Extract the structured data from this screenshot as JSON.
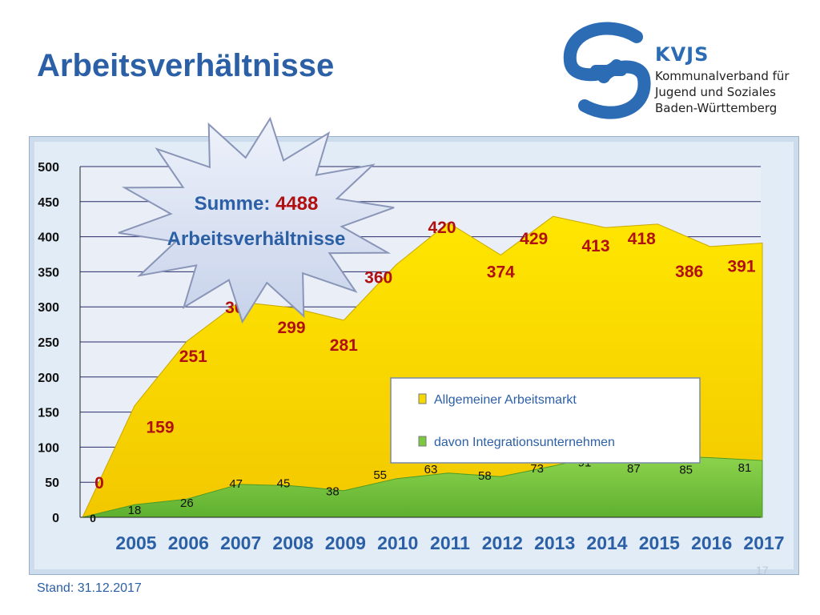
{
  "title": "Arbeitsverhältnisse",
  "logo": {
    "brand": "KVJS",
    "lines": [
      "Kommunalverband für",
      "Jugend und Soziales",
      "Baden-Württemberg"
    ]
  },
  "burst": {
    "line1_label": "Summe:",
    "line1_value": "4488",
    "line2": "Arbeitsverhältnisse"
  },
  "footer": "Stand: 31.12.2017",
  "page_number": "17",
  "colors": {
    "yellow": "#f5d800",
    "green": "#7bc940",
    "red_label": "#b01010",
    "blue_text": "#2b5fa6"
  },
  "chart_data": {
    "type": "area",
    "x": [
      "2005",
      "2006",
      "2007",
      "2008",
      "2009",
      "2010",
      "2011",
      "2012",
      "2013",
      "2014",
      "2015",
      "2016",
      "2017"
    ],
    "series": [
      {
        "name": "Allgemeiner Arbeitsmarkt",
        "values": [
          159,
          251,
          307,
          299,
          281,
          360,
          420,
          374,
          429,
          413,
          418,
          386,
          391
        ],
        "color": "#f5d800"
      },
      {
        "name": "davon Integrationsunternehmen",
        "values": [
          18,
          26,
          47,
          45,
          38,
          55,
          63,
          58,
          73,
          91,
          87,
          85,
          81
        ],
        "color": "#7bc940"
      }
    ],
    "start_labels": {
      "allgemeiner": "0",
      "integration": "0"
    },
    "yticks": [
      "0",
      "50",
      "100",
      "150",
      "200",
      "250",
      "300",
      "350",
      "400",
      "450",
      "500"
    ],
    "ylim": [
      0,
      500
    ],
    "legend_position": "bottom-right"
  }
}
